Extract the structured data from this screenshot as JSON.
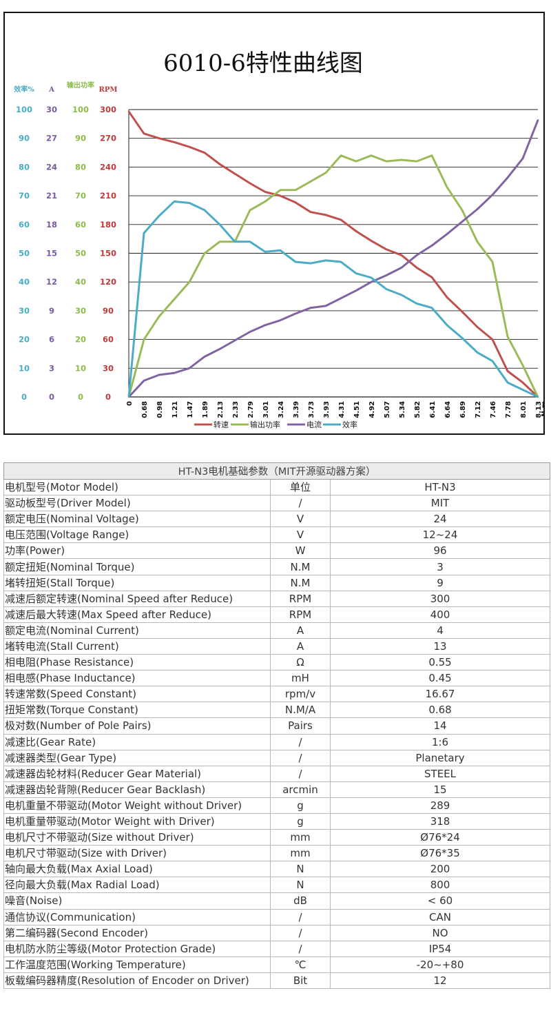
{
  "chart_data": {
    "type": "line",
    "title": "6010-6特性曲线图",
    "x_unit_label": "N.m",
    "x": [
      "0",
      "0.68",
      "0.98",
      "1.21",
      "1.47",
      "1.89",
      "2.13",
      "2.33",
      "2.79",
      "3.01",
      "3.24",
      "3.39",
      "3.73",
      "3.93",
      "4.31",
      "4.51",
      "4.92",
      "5.07",
      "5.34",
      "5.82",
      "6.41",
      "6.64",
      "6.89",
      "7.12",
      "7.46",
      "7.78",
      "8.01",
      "8.13"
    ],
    "y_axes": [
      {
        "label": "效率%",
        "color": "#4aacc6",
        "ticks": [
          "100",
          "90",
          "80",
          "70",
          "60",
          "50",
          "40",
          "30",
          "20",
          "10",
          "0"
        ]
      },
      {
        "label": "A",
        "color": "#7a5aa0",
        "ticks": [
          "30",
          "27",
          "24",
          "21",
          "18",
          "15",
          "12",
          "9",
          "6",
          "3",
          "0"
        ]
      },
      {
        "label": "输出功率",
        "color": "#8cbd4a",
        "ticks": [
          "100",
          "90",
          "80",
          "70",
          "60",
          "50",
          "40",
          "30",
          "20",
          "10",
          "0"
        ]
      },
      {
        "label": "RPM",
        "color": "#c0393b",
        "ticks": [
          "300",
          "270",
          "240",
          "210",
          "180",
          "150",
          "120",
          "90",
          "60",
          "30",
          "0"
        ]
      }
    ],
    "ylim_rpm": [
      0,
      300
    ],
    "grid": true,
    "legend_position": "bottom",
    "series": [
      {
        "name": "转速",
        "axis": "RPM",
        "color": "#c0504d",
        "values": [
          298,
          275,
          270,
          266,
          261,
          255,
          243,
          233,
          223,
          214,
          210,
          203,
          193,
          190,
          185,
          173,
          163,
          154,
          148,
          135,
          125,
          104,
          89,
          73,
          60,
          27,
          15,
          0
        ]
      },
      {
        "name": "输出功率",
        "axis": "输出功率",
        "color": "#9bbb59",
        "values": [
          0,
          20,
          28,
          34,
          40,
          50,
          54,
          54,
          65,
          68,
          72,
          72,
          75,
          78,
          84,
          82,
          84,
          82,
          82.5,
          82,
          84,
          73,
          65,
          54,
          47,
          21,
          11,
          0
        ]
      },
      {
        "name": "电流",
        "axis": "A",
        "color": "#8064a2",
        "values": [
          0,
          1.7,
          2.3,
          2.5,
          3,
          4.2,
          5,
          5.9,
          6.8,
          7.5,
          8,
          8.7,
          9.3,
          9.5,
          10.3,
          11.1,
          12,
          12.7,
          13.5,
          14.8,
          15.8,
          17,
          18.3,
          19.6,
          21.1,
          22.9,
          24.9,
          28.9
        ]
      },
      {
        "name": "效率",
        "axis": "效率%",
        "color": "#4bacc6",
        "values": [
          0,
          57,
          63,
          68,
          67.5,
          65,
          60,
          54,
          54,
          50.5,
          51,
          47,
          46.5,
          47.5,
          47,
          43,
          41.5,
          37.5,
          35.5,
          32.5,
          31,
          25,
          20.5,
          15.5,
          12.5,
          5,
          2.5,
          0
        ]
      }
    ]
  },
  "spec_table": {
    "title": "HT-N3电机基础参数（MIT开源驱动器方案）",
    "rows": [
      [
        "电机型号(Motor Model)",
        "单位",
        "HT-N3"
      ],
      [
        "驱动板型号(Driver Model)",
        "/",
        "MIT"
      ],
      [
        "额定电压(Nominal Voltage)",
        "V",
        "24"
      ],
      [
        "电压范围(Voltage Range)",
        "V",
        "12~24"
      ],
      [
        "功率(Power)",
        "W",
        "96"
      ],
      [
        "额定扭矩(Nominal Torque)",
        "N.M",
        "3"
      ],
      [
        "堵转扭矩(Stall Torque)",
        "N.M",
        "9"
      ],
      [
        "减速后额定转速(Nominal Speed after Reduce)",
        "RPM",
        "300"
      ],
      [
        "减速后最大转速(Max Speed after Reduce)",
        "RPM",
        "400"
      ],
      [
        "额定电流(Nominal Current)",
        "A",
        "4"
      ],
      [
        "堵转电流(Stall Current)",
        "A",
        "13"
      ],
      [
        "相电阻(Phase Resistance)",
        "Ω",
        "0.55"
      ],
      [
        "相电感(Phase Inductance)",
        "mH",
        "0.45"
      ],
      [
        "转速常数(Speed Constant)",
        "rpm/v",
        "16.67"
      ],
      [
        "扭矩常数(Torque Constant)",
        "N.M/A",
        "0.68"
      ],
      [
        "极对数(Number of Pole Pairs)",
        "Pairs",
        "14"
      ],
      [
        "减速比(Gear Rate)",
        "/",
        "1:6"
      ],
      [
        "减速器类型(Gear Type)",
        "/",
        "Planetary"
      ],
      [
        "减速器齿轮材料(Reducer Gear Material)",
        "/",
        "STEEL"
      ],
      [
        "减速器齿轮背隙(Reducer Gear Backlash)",
        "arcmin",
        "15"
      ],
      [
        "电机重量不带驱动(Motor Weight without Driver)",
        "g",
        "289"
      ],
      [
        "电机重量带驱动(Motor Weight with Driver)",
        "g",
        "318"
      ],
      [
        "电机尺寸不带驱动(Size without Driver)",
        "mm",
        "Ø76*24"
      ],
      [
        "电机尺寸带驱动(Size with Driver)",
        "mm",
        "Ø76*35"
      ],
      [
        "轴向最大负载(Max Axial Load)",
        "N",
        "200"
      ],
      [
        "径向最大负载(Max Radial Load)",
        "N",
        "800"
      ],
      [
        "噪音(Noise)",
        "dB",
        "< 60"
      ],
      [
        "通信协议(Communication)",
        "/",
        "CAN"
      ],
      [
        "第二编码器(Second Encoder)",
        "/",
        "NO"
      ],
      [
        "电机防水防尘等级(Motor Protection Grade)",
        "/",
        "IP54"
      ],
      [
        "工作温度范围(Working Temperature)",
        "℃",
        "-20~+80"
      ],
      [
        "板载编码器精度(Resolution of Encoder on Driver)",
        "Bit",
        "12"
      ]
    ]
  }
}
